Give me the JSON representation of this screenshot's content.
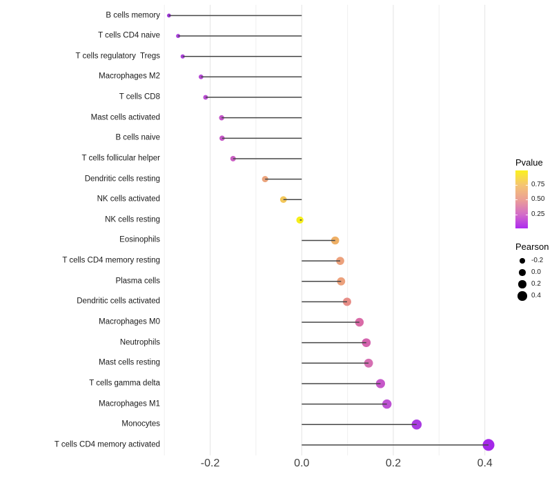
{
  "figure": {
    "background": "#ffffff"
  },
  "chart_data": {
    "type": "scatter",
    "variant": "lollipop",
    "orientation": "horizontal",
    "title": "",
    "xlabel": "",
    "ylabel": "",
    "categories": [
      "B cells memory",
      "T cells CD4 naive",
      "T cells regulatory  Tregs",
      "Macrophages M2",
      "T cells CD8",
      "Mast cells activated",
      "B cells naive",
      "T cells follicular helper",
      "Dendritic cells resting",
      "NK cells activated",
      "NK cells resting",
      "Eosinophils",
      "T cells CD4 memory resting",
      "Plasma cells",
      "Dendritic cells activated",
      "Macrophages M0",
      "Neutrophils",
      "Mast cells resting",
      "T cells gamma delta",
      "Macrophages M1",
      "Monocytes",
      "T cells CD4 memory activated"
    ],
    "series": [
      {
        "name": "Pearson",
        "values": [
          -0.29,
          -0.27,
          -0.26,
          -0.22,
          -0.21,
          -0.175,
          -0.174,
          -0.15,
          -0.08,
          -0.04,
          -0.004,
          0.073,
          0.084,
          0.086,
          0.099,
          0.126,
          0.141,
          0.146,
          0.172,
          0.186,
          0.251,
          0.408
        ]
      },
      {
        "name": "Pvalue",
        "values": [
          0.08,
          0.12,
          0.13,
          0.16,
          0.17,
          0.21,
          0.21,
          0.23,
          0.55,
          0.78,
          0.97,
          0.62,
          0.5,
          0.5,
          0.44,
          0.33,
          0.3,
          0.31,
          0.22,
          0.19,
          0.11,
          0.05
        ]
      }
    ],
    "point_colors": [
      "#9B35D6",
      "#A840DB",
      "#AB42DA",
      "#B54AD5",
      "#BA4ED3",
      "#C455C9",
      "#C557C7",
      "#C95EC2",
      "#EBA57E",
      "#F3C75B",
      "#F6EE1B",
      "#EFB066",
      "#ECA17C",
      "#ECA17C",
      "#E78D87",
      "#D96BA7",
      "#D464AE",
      "#D56FB2",
      "#C657C9",
      "#BD52D3",
      "#A93BE1",
      "#A428E8"
    ],
    "stem_color": "#454545",
    "xlim": [
      -0.303,
      0.447
    ],
    "xticks": {
      "values": [
        -0.2,
        0.0,
        0.2,
        0.4
      ],
      "labels": [
        "-0.2",
        "0.0",
        "0.2",
        "0.4"
      ]
    },
    "grid": {
      "vertical_values": [
        -0.3,
        -0.2,
        -0.1,
        0.0,
        0.1,
        0.2,
        0.3,
        0.4
      ],
      "major_color": "#E3E3E3",
      "minor_color": "#EFEFEF",
      "horizontal": false
    },
    "legend": {
      "position": "right",
      "pvalue": {
        "title": "Pvalue",
        "domain": [
          0.01,
          1.0
        ],
        "tick_values": [
          0.75,
          0.5,
          0.25
        ],
        "tick_labels": [
          "0.75",
          "0.50",
          "0.25"
        ],
        "gradient": [
          {
            "p": 1.0,
            "color": "#FBF11E"
          },
          {
            "p": 0.75,
            "color": "#F5C573"
          },
          {
            "p": 0.5,
            "color": "#EB9F95"
          },
          {
            "p": 0.25,
            "color": "#D36CC8"
          },
          {
            "p": 0.01,
            "color": "#AE2AEF"
          }
        ]
      },
      "pearson": {
        "title": "Pearson",
        "values": [
          -0.2,
          0.0,
          0.2,
          0.4
        ],
        "labels": [
          "-0.2",
          "0.0",
          "0.2",
          "0.4"
        ],
        "dot_color": "#000000"
      }
    }
  }
}
